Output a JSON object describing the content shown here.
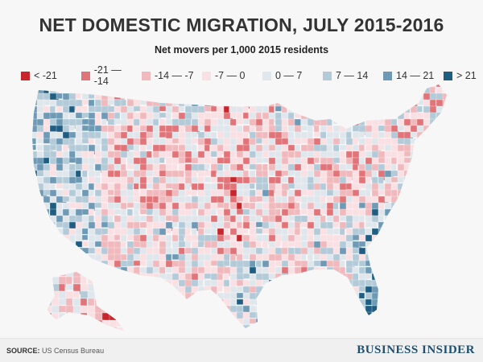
{
  "title": "NET DOMESTIC MIGRATION, JULY 2015-2016",
  "subtitle": "Net movers per 1,000 2015 residents",
  "legend": [
    {
      "label": "< -21",
      "color": "#c8252c"
    },
    {
      "label": "-21 — -14",
      "color": "#e07478"
    },
    {
      "label": "-14 — -7",
      "color": "#efb9bd"
    },
    {
      "label": "-7 — 0",
      "color": "#f9e0e3"
    },
    {
      "label": "0 — 7",
      "color": "#dfe7ec"
    },
    {
      "label": "7 — 14",
      "color": "#b3cad8"
    },
    {
      "label": "14 — 21",
      "color": "#6e9ab5"
    },
    {
      "label": "> 21",
      "color": "#1f5d82"
    }
  ],
  "footer": {
    "source_label": "SOURCE:",
    "source": "US Census Bureau",
    "brand": "BUSINESS INSIDER"
  }
}
